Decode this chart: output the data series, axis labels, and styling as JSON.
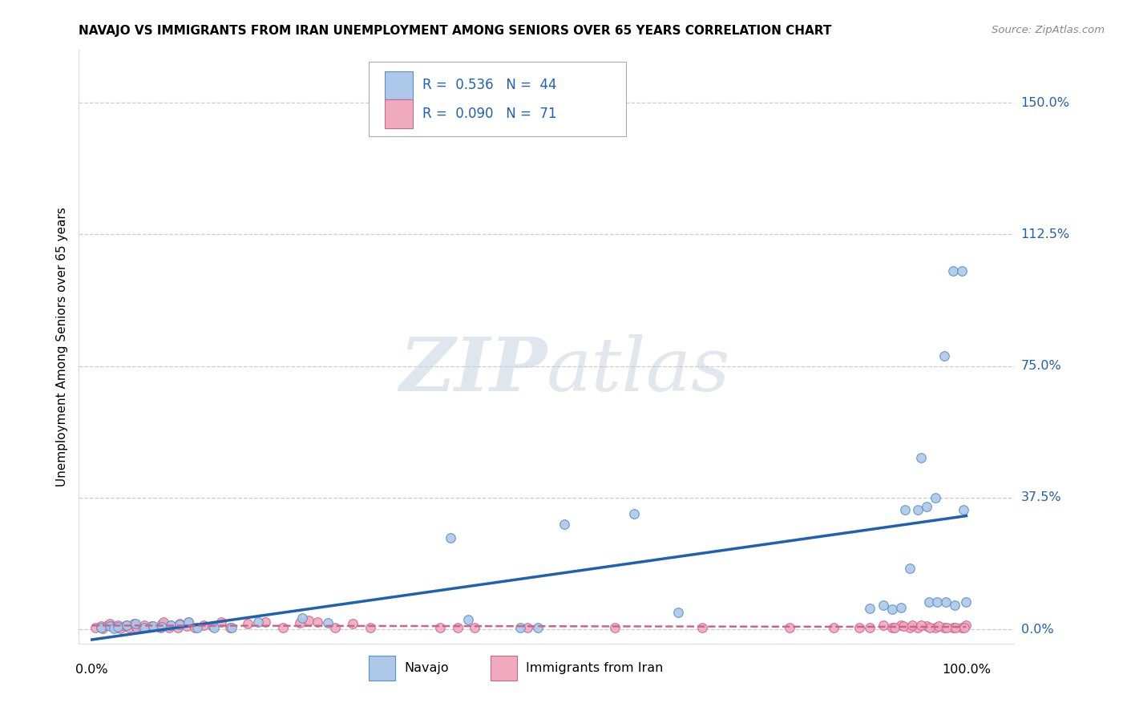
{
  "title": "NAVAJO VS IMMIGRANTS FROM IRAN UNEMPLOYMENT AMONG SENIORS OVER 65 YEARS CORRELATION CHART",
  "source": "Source: ZipAtlas.com",
  "ylabel": "Unemployment Among Seniors over 65 years",
  "ytick_labels": [
    "0.0%",
    "37.5%",
    "75.0%",
    "112.5%",
    "150.0%"
  ],
  "ytick_values": [
    0.0,
    0.375,
    0.75,
    1.125,
    1.5
  ],
  "xtick_labels": [
    "0.0%",
    "100.0%"
  ],
  "xtick_values": [
    0.0,
    1.0
  ],
  "xlim": [
    -0.015,
    1.055
  ],
  "ylim": [
    -0.04,
    1.65
  ],
  "navajo_color": "#adc8e8",
  "navajo_edge": "#5590cc",
  "iran_color": "#f0aabf",
  "iran_edge": "#cc6688",
  "trend_navajo_color": "#2060b0",
  "trend_iran_color": "#cc6688",
  "watermark_zip_color": "#c8d4e4",
  "watermark_atlas_color": "#c0ccd8",
  "navajo_points": [
    [
      0.01,
      0.006
    ],
    [
      0.02,
      0.01
    ],
    [
      0.025,
      0.004
    ],
    [
      0.03,
      0.008
    ],
    [
      0.04,
      0.012
    ],
    [
      0.05,
      0.016
    ],
    [
      0.06,
      0.006
    ],
    [
      0.07,
      0.009
    ],
    [
      0.08,
      0.007
    ],
    [
      0.09,
      0.011
    ],
    [
      0.1,
      0.014
    ],
    [
      0.11,
      0.022
    ],
    [
      0.12,
      0.006
    ],
    [
      0.14,
      0.006
    ],
    [
      0.16,
      0.006
    ],
    [
      0.19,
      0.022
    ],
    [
      0.24,
      0.032
    ],
    [
      0.27,
      0.018
    ],
    [
      0.41,
      0.26
    ],
    [
      0.43,
      0.028
    ],
    [
      0.49,
      0.006
    ],
    [
      0.51,
      0.006
    ],
    [
      0.54,
      0.3
    ],
    [
      0.62,
      0.33
    ],
    [
      0.67,
      0.048
    ],
    [
      0.89,
      0.06
    ],
    [
      0.905,
      0.068
    ],
    [
      0.915,
      0.058
    ],
    [
      0.925,
      0.063
    ],
    [
      0.935,
      0.175
    ],
    [
      0.945,
      0.34
    ],
    [
      0.955,
      0.35
    ],
    [
      0.965,
      0.375
    ],
    [
      0.975,
      0.78
    ],
    [
      0.985,
      1.02
    ],
    [
      0.995,
      1.02
    ],
    [
      0.93,
      0.34
    ],
    [
      0.948,
      0.49
    ],
    [
      0.957,
      0.078
    ],
    [
      0.967,
      0.078
    ],
    [
      0.977,
      0.078
    ],
    [
      0.987,
      0.068
    ],
    [
      0.997,
      0.34
    ],
    [
      1.0,
      0.078
    ]
  ],
  "iran_points": [
    [
      0.004,
      0.006
    ],
    [
      0.01,
      0.009
    ],
    [
      0.012,
      0.004
    ],
    [
      0.018,
      0.011
    ],
    [
      0.02,
      0.016
    ],
    [
      0.022,
      0.009
    ],
    [
      0.028,
      0.006
    ],
    [
      0.03,
      0.011
    ],
    [
      0.032,
      0.004
    ],
    [
      0.038,
      0.009
    ],
    [
      0.04,
      0.013
    ],
    [
      0.042,
      0.006
    ],
    [
      0.048,
      0.016
    ],
    [
      0.05,
      0.009
    ],
    [
      0.052,
      0.004
    ],
    [
      0.058,
      0.006
    ],
    [
      0.06,
      0.011
    ],
    [
      0.068,
      0.009
    ],
    [
      0.078,
      0.006
    ],
    [
      0.08,
      0.016
    ],
    [
      0.082,
      0.022
    ],
    [
      0.088,
      0.006
    ],
    [
      0.09,
      0.011
    ],
    [
      0.098,
      0.006
    ],
    [
      0.1,
      0.016
    ],
    [
      0.108,
      0.009
    ],
    [
      0.11,
      0.022
    ],
    [
      0.118,
      0.006
    ],
    [
      0.128,
      0.011
    ],
    [
      0.138,
      0.009
    ],
    [
      0.148,
      0.022
    ],
    [
      0.158,
      0.006
    ],
    [
      0.178,
      0.016
    ],
    [
      0.198,
      0.022
    ],
    [
      0.218,
      0.006
    ],
    [
      0.238,
      0.019
    ],
    [
      0.248,
      0.026
    ],
    [
      0.258,
      0.021
    ],
    [
      0.278,
      0.006
    ],
    [
      0.298,
      0.016
    ],
    [
      0.318,
      0.006
    ],
    [
      0.398,
      0.006
    ],
    [
      0.418,
      0.006
    ],
    [
      0.438,
      0.006
    ],
    [
      0.498,
      0.006
    ],
    [
      0.598,
      0.006
    ],
    [
      0.698,
      0.006
    ],
    [
      0.798,
      0.006
    ],
    [
      0.848,
      0.006
    ],
    [
      0.878,
      0.006
    ],
    [
      0.89,
      0.006
    ],
    [
      0.905,
      0.011
    ],
    [
      0.915,
      0.006
    ],
    [
      0.925,
      0.011
    ],
    [
      0.935,
      0.006
    ],
    [
      0.945,
      0.006
    ],
    [
      0.955,
      0.009
    ],
    [
      0.965,
      0.006
    ],
    [
      0.975,
      0.006
    ],
    [
      0.985,
      0.006
    ],
    [
      0.995,
      0.006
    ],
    [
      1.0,
      0.011
    ],
    [
      0.918,
      0.006
    ],
    [
      0.928,
      0.009
    ],
    [
      0.938,
      0.011
    ],
    [
      0.948,
      0.011
    ],
    [
      0.958,
      0.006
    ],
    [
      0.968,
      0.009
    ],
    [
      0.978,
      0.006
    ],
    [
      0.988,
      0.006
    ],
    [
      0.998,
      0.006
    ]
  ]
}
